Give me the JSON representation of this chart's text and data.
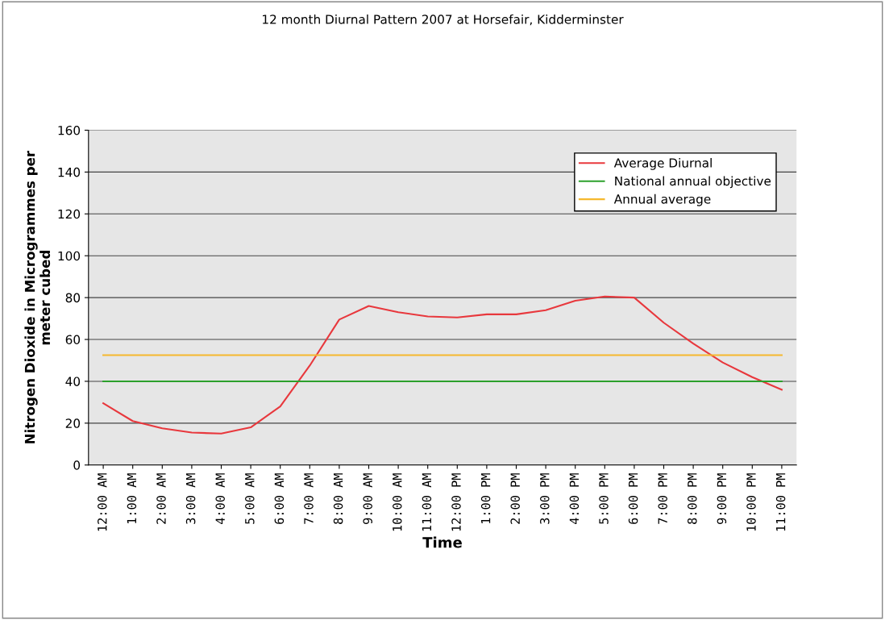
{
  "chart_data": {
    "type": "line",
    "title": "12 month Diurnal Pattern 2007 at Horsefair, Kidderminster",
    "xlabel": "Time",
    "ylabel": "Nitrogen Dioxide in Microgrammes per\nmeter cubed",
    "categories": [
      "12:00 AM",
      "1:00 AM",
      "2:00 AM",
      "3:00 AM",
      "4:00 AM",
      "5:00 AM",
      "6:00 AM",
      "7:00 AM",
      "8:00 AM",
      "9:00 AM",
      "10:00 AM",
      "11:00 AM",
      "12:00 PM",
      "1:00 PM",
      "2:00 PM",
      "3:00 PM",
      "4:00 PM",
      "5:00 PM",
      "6:00 PM",
      "7:00 PM",
      "8:00 PM",
      "9:00 PM",
      "10:00 PM",
      "11:00 PM"
    ],
    "series": [
      {
        "name": "Average Diurnal",
        "color": "#e8383d",
        "values": [
          29.5,
          21,
          17.5,
          15.5,
          15,
          18,
          28,
          47.5,
          69.5,
          76,
          73,
          71,
          70.5,
          72,
          72,
          74,
          78.5,
          80.5,
          80,
          68,
          58,
          49,
          42,
          36
        ]
      },
      {
        "name": "National annual objective",
        "color": "#2ca02c",
        "values": [
          40,
          40,
          40,
          40,
          40,
          40,
          40,
          40,
          40,
          40,
          40,
          40,
          40,
          40,
          40,
          40,
          40,
          40,
          40,
          40,
          40,
          40,
          40,
          40
        ]
      },
      {
        "name": "Annual average",
        "color": "#f5b82e",
        "values": [
          52.5,
          52.5,
          52.5,
          52.5,
          52.5,
          52.5,
          52.5,
          52.5,
          52.5,
          52.5,
          52.5,
          52.5,
          52.5,
          52.5,
          52.5,
          52.5,
          52.5,
          52.5,
          52.5,
          52.5,
          52.5,
          52.5,
          52.5,
          52.5
        ]
      }
    ],
    "ylim": [
      0,
      160
    ],
    "yticks": [
      0,
      20,
      40,
      60,
      80,
      100,
      120,
      140,
      160
    ],
    "grid": "y",
    "legend": "top right",
    "marker": "none",
    "line_style": "solid"
  }
}
